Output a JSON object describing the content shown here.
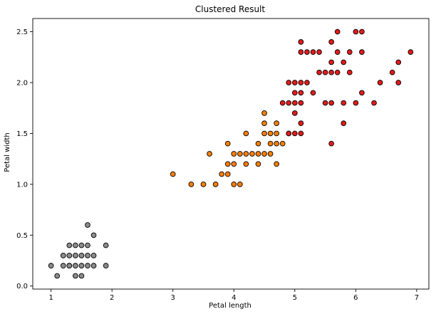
{
  "chart_data": {
    "type": "scatter",
    "title": "Clustered Result",
    "xlabel": "Petal length",
    "ylabel": "Petal width",
    "xlim": [
      0.7,
      7.2
    ],
    "ylim": [
      -0.03,
      2.63
    ],
    "x_ticks": [
      1,
      2,
      3,
      4,
      5,
      6,
      7
    ],
    "y_ticks": [
      0.0,
      0.5,
      1.0,
      1.5,
      2.0,
      2.5
    ],
    "x_tick_labels": [
      "1",
      "2",
      "3",
      "4",
      "5",
      "6",
      "7"
    ],
    "y_tick_labels": [
      "0.0",
      "0.5",
      "1.0",
      "1.5",
      "2.0",
      "2.5"
    ],
    "grid": false,
    "legend": "none",
    "colors": {
      "edge": "#000000",
      "spine": "#000000"
    },
    "series": [
      {
        "color": "#8c8c8c",
        "points": [
          [
            1.0,
            0.2
          ],
          [
            1.1,
            0.1
          ],
          [
            1.2,
            0.2
          ],
          [
            1.3,
            0.2
          ],
          [
            1.3,
            0.3
          ],
          [
            1.3,
            0.4
          ],
          [
            1.4,
            0.1
          ],
          [
            1.4,
            0.2
          ],
          [
            1.4,
            0.3
          ],
          [
            1.5,
            0.1
          ],
          [
            1.5,
            0.2
          ],
          [
            1.5,
            0.4
          ],
          [
            1.6,
            0.2
          ],
          [
            1.6,
            0.4
          ],
          [
            1.6,
            0.6
          ],
          [
            1.7,
            0.2
          ],
          [
            1.7,
            0.3
          ],
          [
            1.7,
            0.5
          ],
          [
            1.9,
            0.2
          ],
          [
            1.9,
            0.4
          ],
          [
            1.2,
            0.3
          ],
          [
            1.4,
            0.4
          ],
          [
            1.5,
            0.3
          ],
          [
            1.6,
            0.3
          ],
          [
            1.3,
            0.2
          ]
        ]
      },
      {
        "color": "#ff7f00",
        "points": [
          [
            3.0,
            1.1
          ],
          [
            3.3,
            1.0
          ],
          [
            3.5,
            1.0
          ],
          [
            3.6,
            1.3
          ],
          [
            3.7,
            1.0
          ],
          [
            3.8,
            1.1
          ],
          [
            3.9,
            1.1
          ],
          [
            3.9,
            1.2
          ],
          [
            3.9,
            1.4
          ],
          [
            4.0,
            1.0
          ],
          [
            4.0,
            1.2
          ],
          [
            4.0,
            1.3
          ],
          [
            4.1,
            1.0
          ],
          [
            4.1,
            1.3
          ],
          [
            4.2,
            1.2
          ],
          [
            4.2,
            1.3
          ],
          [
            4.2,
            1.5
          ],
          [
            4.3,
            1.3
          ],
          [
            4.4,
            1.2
          ],
          [
            4.4,
            1.3
          ],
          [
            4.4,
            1.4
          ],
          [
            4.5,
            1.3
          ],
          [
            4.5,
            1.5
          ],
          [
            4.5,
            1.6
          ],
          [
            4.5,
            1.7
          ],
          [
            4.6,
            1.3
          ],
          [
            4.6,
            1.4
          ],
          [
            4.6,
            1.5
          ],
          [
            4.7,
            1.2
          ],
          [
            4.7,
            1.4
          ],
          [
            4.7,
            1.5
          ],
          [
            4.7,
            1.6
          ],
          [
            4.8,
            1.4
          ],
          [
            4.9,
            1.5
          ]
        ]
      },
      {
        "color": "#e41a1c",
        "points": [
          [
            4.8,
            1.8
          ],
          [
            4.9,
            1.5
          ],
          [
            4.9,
            1.8
          ],
          [
            4.9,
            2.0
          ],
          [
            5.0,
            1.5
          ],
          [
            5.0,
            1.7
          ],
          [
            5.0,
            1.8
          ],
          [
            5.0,
            1.9
          ],
          [
            5.0,
            2.0
          ],
          [
            5.1,
            1.5
          ],
          [
            5.1,
            1.6
          ],
          [
            5.1,
            1.8
          ],
          [
            5.1,
            1.9
          ],
          [
            5.1,
            2.0
          ],
          [
            5.1,
            2.3
          ],
          [
            5.1,
            2.4
          ],
          [
            5.2,
            2.0
          ],
          [
            5.2,
            2.3
          ],
          [
            5.3,
            1.9
          ],
          [
            5.3,
            2.3
          ],
          [
            5.4,
            2.1
          ],
          [
            5.4,
            2.3
          ],
          [
            5.5,
            1.8
          ],
          [
            5.5,
            2.1
          ],
          [
            5.6,
            1.4
          ],
          [
            5.6,
            1.8
          ],
          [
            5.6,
            2.1
          ],
          [
            5.6,
            2.2
          ],
          [
            5.6,
            2.4
          ],
          [
            5.7,
            2.1
          ],
          [
            5.7,
            2.3
          ],
          [
            5.7,
            2.5
          ],
          [
            5.8,
            1.6
          ],
          [
            5.8,
            1.8
          ],
          [
            5.8,
            2.2
          ],
          [
            5.9,
            2.1
          ],
          [
            5.9,
            2.3
          ],
          [
            6.0,
            1.8
          ],
          [
            6.0,
            2.5
          ],
          [
            6.1,
            1.9
          ],
          [
            6.1,
            2.3
          ],
          [
            6.1,
            2.5
          ],
          [
            6.3,
            1.8
          ],
          [
            6.4,
            2.0
          ],
          [
            6.6,
            2.1
          ],
          [
            6.7,
            2.0
          ],
          [
            6.7,
            2.2
          ],
          [
            6.9,
            2.3
          ]
        ]
      }
    ]
  }
}
